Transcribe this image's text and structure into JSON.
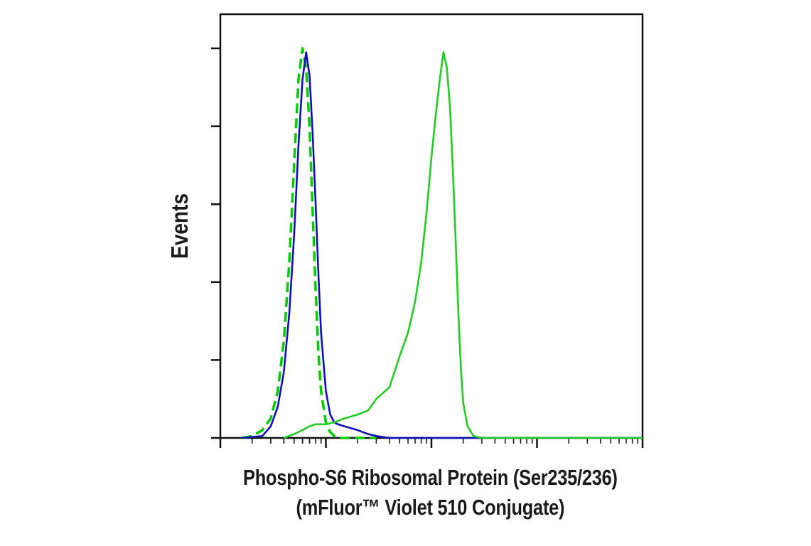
{
  "chart_data": {
    "type": "line",
    "title": "",
    "xlabel_lines": [
      "Phospho-S6 Ribosomal Protein (Ser235/236)",
      "(mFluor™ Violet 510 Conjugate)"
    ],
    "ylabel": "Events",
    "x_scale": "log",
    "xlim": [
      100,
      1000000
    ],
    "ylim": [
      0,
      100
    ],
    "tick_labels_shown": false,
    "grid": false,
    "legend": "none",
    "series": [
      {
        "color": "#00cc00",
        "style": "dashed",
        "x": [
          160,
          200,
          250,
          300,
          350,
          400,
          450,
          500,
          550,
          600,
          650,
          700,
          750,
          800,
          850,
          900,
          1000,
          1100,
          1200,
          1300,
          1500,
          2000,
          3000
        ],
        "y": [
          0,
          0.5,
          2,
          5,
          12,
          25,
          45,
          70,
          92,
          100,
          95,
          80,
          58,
          38,
          22,
          12,
          4,
          1.5,
          0.5,
          0,
          0,
          0,
          0
        ]
      },
      {
        "color": "#1010bb",
        "style": "solid",
        "x": [
          160,
          250,
          300,
          350,
          400,
          450,
          500,
          550,
          600,
          650,
          700,
          750,
          800,
          850,
          900,
          1000,
          1100,
          1200,
          1300,
          1500,
          2000,
          2500,
          3000,
          4000,
          10000,
          100000,
          1000000
        ],
        "y": [
          0,
          0.5,
          3,
          8,
          17,
          32,
          52,
          75,
          92,
          99,
          93,
          78,
          60,
          42,
          27,
          12,
          6,
          4,
          3.5,
          3,
          2,
          1,
          0.5,
          0,
          0,
          0,
          0
        ]
      },
      {
        "color": "#22cc22",
        "style": "solid",
        "x": [
          400,
          500,
          600,
          700,
          800,
          1000,
          1200,
          1500,
          2000,
          2500,
          3000,
          4000,
          5000,
          6000,
          7000,
          8000,
          9000,
          10000,
          11000,
          12000,
          13000,
          14000,
          15000,
          16000,
          17000,
          18000,
          19000,
          20000,
          22000,
          25000,
          30000,
          40000,
          100000,
          1000000
        ],
        "y": [
          0,
          1,
          2,
          3,
          3.5,
          3.5,
          4,
          5,
          6,
          7,
          10,
          13,
          21,
          27,
          35,
          45,
          58,
          72,
          83,
          92,
          99,
          95,
          85,
          68,
          50,
          32,
          18,
          9,
          3,
          0.5,
          0,
          0,
          0,
          0
        ]
      }
    ]
  }
}
